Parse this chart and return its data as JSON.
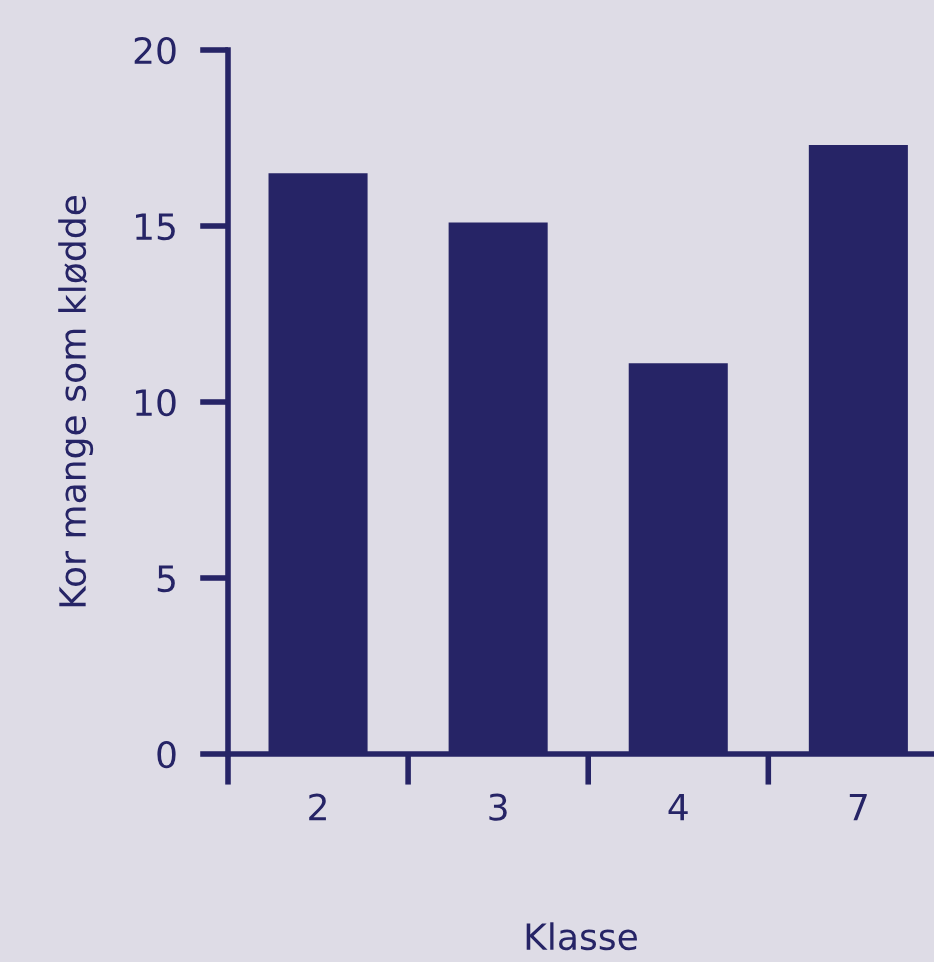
{
  "chart_data": {
    "type": "bar",
    "xlabel": "Klasse",
    "ylabel": "Kor mange som klødde",
    "categories": [
      "2",
      "3",
      "4",
      "7"
    ],
    "values": [
      16.5,
      15.1,
      11.1,
      17.3
    ],
    "color": "#262466",
    "ylim": [
      0,
      20
    ],
    "yticks": [
      0,
      5,
      10,
      15,
      20
    ],
    "grid": false,
    "legend": false
  }
}
